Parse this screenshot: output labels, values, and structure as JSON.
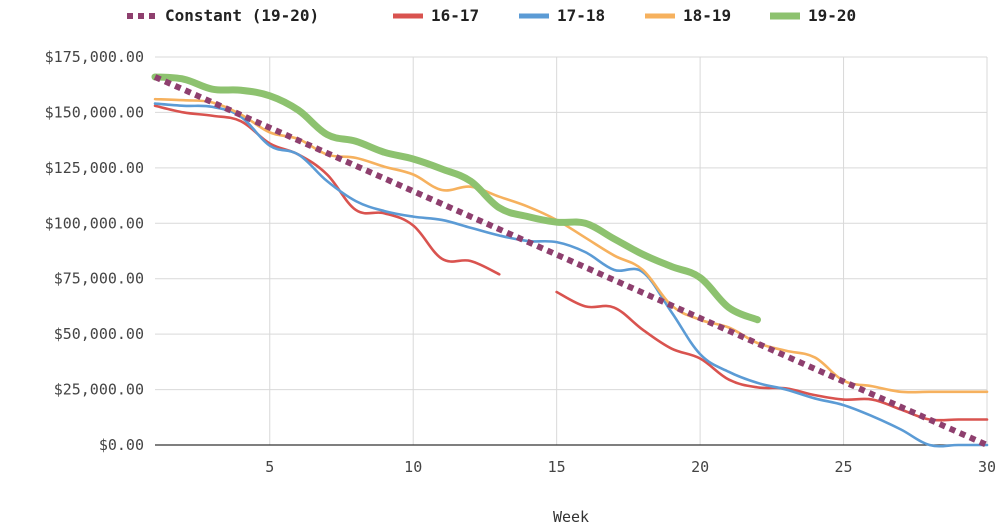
{
  "chart_data": {
    "type": "line",
    "xlabel": "Week",
    "ylabel": "",
    "xlim": [
      1,
      30
    ],
    "ylim": [
      0,
      175000
    ],
    "x_ticks": [
      5,
      10,
      15,
      20,
      25,
      30
    ],
    "y_ticks": [
      0,
      25000,
      50000,
      75000,
      100000,
      125000,
      150000,
      175000
    ],
    "y_tick_labels": [
      "$0.00",
      "$25,000.00",
      "$50,000.00",
      "$75,000.00",
      "$100,000.00",
      "$125,000.00",
      "$150,000.00",
      "$175,000.00"
    ],
    "grid": true,
    "legend_position": "top",
    "series": [
      {
        "name": "Constant (19-20)",
        "color": "#8e3f6e",
        "style": "dotted",
        "points": [
          [
            1,
            166000
          ],
          [
            30,
            0
          ]
        ]
      },
      {
        "name": "16-17",
        "color": "#d9534f",
        "style": "solid",
        "points": [
          [
            1,
            153000
          ],
          [
            2,
            150000
          ],
          [
            3,
            148500
          ],
          [
            4,
            146000
          ],
          [
            5,
            136000
          ],
          [
            6,
            131000
          ],
          [
            7,
            122000
          ],
          [
            8,
            106000
          ],
          [
            9,
            104500
          ],
          [
            10,
            99000
          ],
          [
            11,
            84000
          ],
          [
            12,
            83000
          ],
          [
            13,
            77000
          ],
          [
            null,
            null
          ],
          [
            15,
            69000
          ],
          [
            16,
            62500
          ],
          [
            17,
            62000
          ],
          [
            18,
            52000
          ],
          [
            19,
            43500
          ],
          [
            20,
            39000
          ],
          [
            21,
            29500
          ],
          [
            22,
            26000
          ],
          [
            23,
            25500
          ],
          [
            24,
            22500
          ],
          [
            25,
            20500
          ],
          [
            26,
            20500
          ],
          [
            27,
            16000
          ],
          [
            28,
            11500
          ],
          [
            29,
            11500
          ],
          [
            30,
            11500
          ]
        ]
      },
      {
        "name": "17-18",
        "color": "#5b9bd5",
        "style": "solid",
        "points": [
          [
            1,
            154000
          ],
          [
            2,
            153000
          ],
          [
            3,
            152500
          ],
          [
            4,
            148000
          ],
          [
            5,
            135000
          ],
          [
            6,
            131000
          ],
          [
            7,
            119000
          ],
          [
            8,
            110000
          ],
          [
            9,
            105500
          ],
          [
            10,
            103000
          ],
          [
            11,
            101500
          ],
          [
            12,
            98000
          ],
          [
            13,
            94500
          ],
          [
            14,
            92000
          ],
          [
            15,
            91500
          ],
          [
            16,
            87000
          ],
          [
            17,
            79000
          ],
          [
            18,
            78000
          ],
          [
            19,
            60000
          ],
          [
            20,
            41000
          ],
          [
            21,
            33000
          ],
          [
            22,
            28000
          ],
          [
            23,
            25000
          ],
          [
            24,
            21000
          ],
          [
            25,
            18000
          ],
          [
            26,
            13000
          ],
          [
            27,
            7000
          ],
          [
            28,
            0
          ],
          [
            29,
            0
          ],
          [
            30,
            0
          ]
        ]
      },
      {
        "name": "18-19",
        "color": "#f6b15e",
        "style": "solid",
        "points": [
          [
            1,
            156000
          ],
          [
            2,
            155500
          ],
          [
            3,
            154500
          ],
          [
            4,
            149000
          ],
          [
            5,
            141000
          ],
          [
            6,
            138000
          ],
          [
            7,
            131000
          ],
          [
            8,
            129500
          ],
          [
            9,
            125500
          ],
          [
            10,
            122000
          ],
          [
            11,
            115000
          ],
          [
            12,
            116500
          ],
          [
            13,
            112000
          ],
          [
            14,
            107500
          ],
          [
            15,
            101500
          ],
          [
            16,
            93500
          ],
          [
            17,
            85500
          ],
          [
            18,
            79000
          ],
          [
            19,
            63000
          ],
          [
            20,
            56500
          ],
          [
            21,
            53000
          ],
          [
            22,
            46000
          ],
          [
            23,
            42500
          ],
          [
            24,
            39500
          ],
          [
            25,
            29000
          ],
          [
            26,
            26500
          ],
          [
            27,
            24000
          ],
          [
            28,
            24000
          ],
          [
            29,
            24000
          ],
          [
            30,
            24000
          ]
        ]
      },
      {
        "name": "19-20",
        "color": "#8dc26f",
        "style": "thick",
        "points": [
          [
            1,
            166000
          ],
          [
            2,
            165000
          ],
          [
            3,
            160500
          ],
          [
            4,
            160000
          ],
          [
            5,
            157500
          ],
          [
            6,
            151000
          ],
          [
            7,
            140000
          ],
          [
            8,
            137000
          ],
          [
            9,
            132000
          ],
          [
            10,
            129000
          ],
          [
            11,
            124500
          ],
          [
            12,
            119000
          ],
          [
            13,
            107000
          ],
          [
            14,
            103000
          ],
          [
            15,
            100500
          ],
          [
            16,
            100000
          ],
          [
            17,
            93000
          ],
          [
            18,
            86000
          ],
          [
            19,
            80500
          ],
          [
            20,
            75500
          ],
          [
            21,
            62000
          ],
          [
            22,
            56500
          ]
        ]
      }
    ]
  }
}
